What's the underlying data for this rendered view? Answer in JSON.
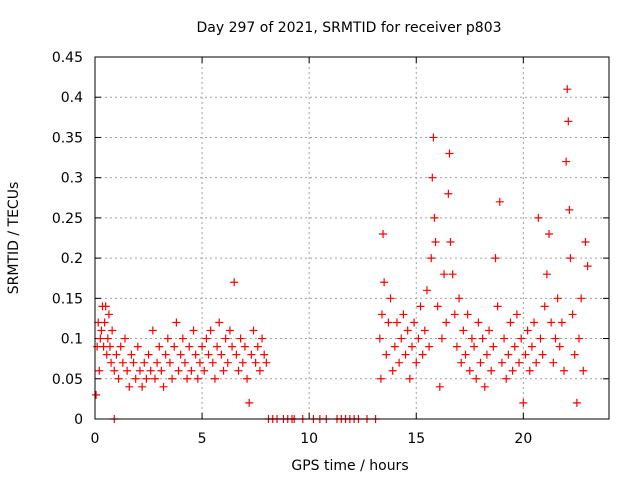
{
  "chart_data": {
    "type": "scatter",
    "title": "Day 297 of 2021, SRMTID for receiver p803",
    "xlabel": "GPS time / hours",
    "ylabel": "SRMTID / TECUs",
    "xlim": [
      0,
      24
    ],
    "ylim": [
      0,
      0.45
    ],
    "xticks": [
      0,
      5,
      10,
      15,
      20
    ],
    "yticks": [
      0,
      0.05,
      0.1,
      0.15,
      0.2,
      0.25,
      0.3,
      0.35,
      0.4,
      0.45
    ],
    "xtick_labels": [
      "0",
      "5",
      "10",
      "15",
      "20"
    ],
    "ytick_labels": [
      "0",
      "0.05",
      "0.1",
      "0.15",
      "0.2",
      "0.25",
      "0.3",
      "0.35",
      "0.4",
      "0.45"
    ],
    "grid": true,
    "marker": "+",
    "color": "#ff0000",
    "series": [
      {
        "name": "SRMTID",
        "points": [
          [
            0.05,
            0.03
          ],
          [
            0.1,
            0.09
          ],
          [
            0.15,
            0.12
          ],
          [
            0.2,
            0.06
          ],
          [
            0.25,
            0.1
          ],
          [
            0.3,
            0.11
          ],
          [
            0.35,
            0.14
          ],
          [
            0.4,
            0.09
          ],
          [
            0.45,
            0.12
          ],
          [
            0.5,
            0.14
          ],
          [
            0.55,
            0.08
          ],
          [
            0.6,
            0.1
          ],
          [
            0.65,
            0.13
          ],
          [
            0.7,
            0.09
          ],
          [
            0.75,
            0.07
          ],
          [
            0.8,
            0.11
          ],
          [
            0.9,
            0.06
          ],
          [
            1.0,
            0.08
          ],
          [
            1.1,
            0.05
          ],
          [
            1.2,
            0.09
          ],
          [
            1.3,
            0.07
          ],
          [
            1.4,
            0.1
          ],
          [
            1.5,
            0.06
          ],
          [
            1.6,
            0.04
          ],
          [
            1.7,
            0.08
          ],
          [
            1.8,
            0.07
          ],
          [
            1.9,
            0.05
          ],
          [
            2.0,
            0.09
          ],
          [
            2.1,
            0.06
          ],
          [
            2.2,
            0.04
          ],
          [
            2.3,
            0.07
          ],
          [
            2.4,
            0.05
          ],
          [
            2.5,
            0.08
          ],
          [
            2.6,
            0.06
          ],
          [
            2.7,
            0.11
          ],
          [
            2.8,
            0.05
          ],
          [
            2.9,
            0.07
          ],
          [
            3.0,
            0.09
          ],
          [
            3.1,
            0.06
          ],
          [
            3.2,
            0.04
          ],
          [
            3.3,
            0.08
          ],
          [
            3.4,
            0.1
          ],
          [
            3.5,
            0.07
          ],
          [
            3.6,
            0.05
          ],
          [
            3.7,
            0.09
          ],
          [
            3.8,
            0.12
          ],
          [
            3.9,
            0.06
          ],
          [
            4.0,
            0.08
          ],
          [
            4.1,
            0.1
          ],
          [
            4.2,
            0.07
          ],
          [
            4.3,
            0.05
          ],
          [
            4.4,
            0.09
          ],
          [
            4.5,
            0.06
          ],
          [
            4.6,
            0.11
          ],
          [
            4.7,
            0.08
          ],
          [
            4.8,
            0.05
          ],
          [
            4.9,
            0.07
          ],
          [
            5.0,
            0.09
          ],
          [
            5.1,
            0.06
          ],
          [
            5.2,
            0.1
          ],
          [
            5.3,
            0.08
          ],
          [
            5.4,
            0.11
          ],
          [
            5.5,
            0.07
          ],
          [
            5.6,
            0.05
          ],
          [
            5.7,
            0.09
          ],
          [
            5.8,
            0.12
          ],
          [
            5.9,
            0.08
          ],
          [
            6.0,
            0.06
          ],
          [
            6.1,
            0.1
          ],
          [
            6.2,
            0.07
          ],
          [
            6.3,
            0.11
          ],
          [
            6.4,
            0.09
          ],
          [
            6.5,
            0.17
          ],
          [
            6.6,
            0.08
          ],
          [
            6.7,
            0.06
          ],
          [
            6.8,
            0.1
          ],
          [
            6.9,
            0.07
          ],
          [
            7.0,
            0.09
          ],
          [
            7.1,
            0.05
          ],
          [
            7.2,
            0.02
          ],
          [
            7.3,
            0.08
          ],
          [
            7.4,
            0.11
          ],
          [
            7.5,
            0.07
          ],
          [
            7.6,
            0.09
          ],
          [
            7.7,
            0.06
          ],
          [
            7.8,
            0.1
          ],
          [
            7.9,
            0.08
          ],
          [
            8.0,
            0.07
          ],
          [
            0.9,
            0.0
          ],
          [
            8.1,
            0.0
          ],
          [
            8.3,
            0.0
          ],
          [
            8.5,
            0.0
          ],
          [
            8.8,
            0.0
          ],
          [
            9.0,
            0.0
          ],
          [
            9.2,
            0.0
          ],
          [
            9.3,
            0.0
          ],
          [
            9.7,
            0.0
          ],
          [
            10.2,
            0.0
          ],
          [
            10.5,
            0.0
          ],
          [
            10.8,
            0.0
          ],
          [
            11.3,
            0.0
          ],
          [
            11.5,
            0.0
          ],
          [
            11.7,
            0.0
          ],
          [
            11.9,
            0.0
          ],
          [
            12.1,
            0.0
          ],
          [
            12.3,
            0.0
          ],
          [
            12.7,
            0.0
          ],
          [
            13.1,
            0.0
          ],
          [
            13.3,
            0.1
          ],
          [
            13.35,
            0.05
          ],
          [
            13.4,
            0.13
          ],
          [
            13.45,
            0.23
          ],
          [
            13.5,
            0.17
          ],
          [
            13.6,
            0.08
          ],
          [
            13.7,
            0.12
          ],
          [
            13.8,
            0.15
          ],
          [
            13.9,
            0.06
          ],
          [
            14.0,
            0.09
          ],
          [
            14.1,
            0.12
          ],
          [
            14.2,
            0.07
          ],
          [
            14.3,
            0.1
          ],
          [
            14.4,
            0.13
          ],
          [
            14.5,
            0.08
          ],
          [
            14.6,
            0.11
          ],
          [
            14.7,
            0.05
          ],
          [
            14.8,
            0.09
          ],
          [
            14.9,
            0.12
          ],
          [
            15.0,
            0.07
          ],
          [
            15.1,
            0.1
          ],
          [
            15.2,
            0.14
          ],
          [
            15.3,
            0.08
          ],
          [
            15.4,
            0.11
          ],
          [
            15.5,
            0.16
          ],
          [
            15.6,
            0.09
          ],
          [
            15.7,
            0.2
          ],
          [
            15.75,
            0.3
          ],
          [
            15.8,
            0.35
          ],
          [
            15.85,
            0.25
          ],
          [
            15.9,
            0.22
          ],
          [
            16.0,
            0.14
          ],
          [
            16.1,
            0.04
          ],
          [
            16.2,
            0.1
          ],
          [
            16.3,
            0.18
          ],
          [
            16.4,
            0.12
          ],
          [
            16.5,
            0.28
          ],
          [
            16.55,
            0.33
          ],
          [
            16.6,
            0.22
          ],
          [
            16.7,
            0.18
          ],
          [
            16.8,
            0.13
          ],
          [
            16.9,
            0.09
          ],
          [
            17.0,
            0.15
          ],
          [
            17.1,
            0.07
          ],
          [
            17.2,
            0.11
          ],
          [
            17.3,
            0.08
          ],
          [
            17.4,
            0.13
          ],
          [
            17.5,
            0.06
          ],
          [
            17.6,
            0.1
          ],
          [
            17.7,
            0.09
          ],
          [
            17.8,
            0.05
          ],
          [
            17.9,
            0.12
          ],
          [
            18.0,
            0.07
          ],
          [
            18.1,
            0.1
          ],
          [
            18.2,
            0.04
          ],
          [
            18.3,
            0.08
          ],
          [
            18.4,
            0.11
          ],
          [
            18.5,
            0.06
          ],
          [
            18.6,
            0.09
          ],
          [
            18.7,
            0.2
          ],
          [
            18.8,
            0.14
          ],
          [
            18.9,
            0.27
          ],
          [
            19.0,
            0.07
          ],
          [
            19.1,
            0.1
          ],
          [
            19.2,
            0.05
          ],
          [
            19.3,
            0.08
          ],
          [
            19.4,
            0.12
          ],
          [
            19.5,
            0.06
          ],
          [
            19.6,
            0.09
          ],
          [
            19.7,
            0.13
          ],
          [
            19.8,
            0.07
          ],
          [
            19.9,
            0.1
          ],
          [
            20.0,
            0.02
          ],
          [
            20.1,
            0.08
          ],
          [
            20.2,
            0.11
          ],
          [
            20.3,
            0.06
          ],
          [
            20.4,
            0.09
          ],
          [
            20.5,
            0.12
          ],
          [
            20.6,
            0.07
          ],
          [
            20.7,
            0.25
          ],
          [
            20.8,
            0.1
          ],
          [
            20.9,
            0.08
          ],
          [
            21.0,
            0.14
          ],
          [
            21.1,
            0.18
          ],
          [
            21.2,
            0.23
          ],
          [
            21.3,
            0.12
          ],
          [
            21.4,
            0.07
          ],
          [
            21.5,
            0.1
          ],
          [
            21.6,
            0.15
          ],
          [
            21.7,
            0.09
          ],
          [
            21.8,
            0.12
          ],
          [
            21.9,
            0.06
          ],
          [
            22.0,
            0.32
          ],
          [
            22.05,
            0.41
          ],
          [
            22.1,
            0.37
          ],
          [
            22.15,
            0.26
          ],
          [
            22.2,
            0.2
          ],
          [
            22.3,
            0.13
          ],
          [
            22.4,
            0.08
          ],
          [
            22.5,
            0.02
          ],
          [
            22.6,
            0.1
          ],
          [
            22.7,
            0.15
          ],
          [
            22.8,
            0.06
          ],
          [
            22.9,
            0.22
          ],
          [
            23.0,
            0.19
          ]
        ]
      }
    ]
  }
}
